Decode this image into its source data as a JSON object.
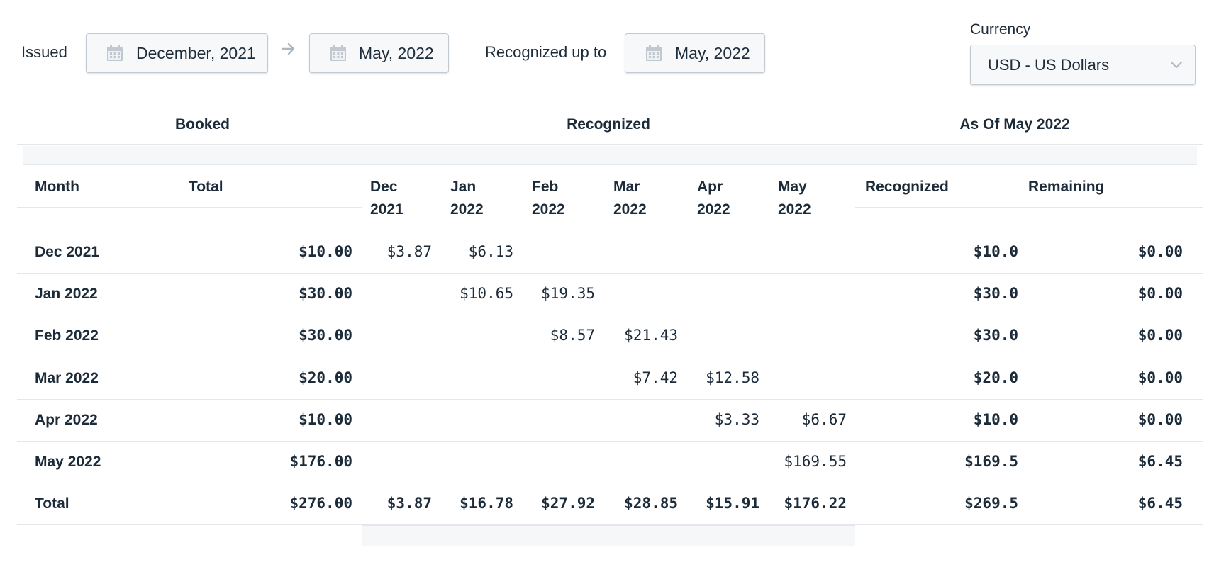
{
  "filters": {
    "issued_label": "Issued",
    "issued_from": "December, 2021",
    "issued_to": "May, 2022",
    "recognized_label": "Recognized up to",
    "recognized_up_to": "May, 2022",
    "currency_label": "Currency",
    "currency_value": "USD - US Dollars"
  },
  "groups": {
    "booked": "Booked",
    "recognized": "Recognized",
    "as_of": "As Of May 2022"
  },
  "columns": {
    "month": "Month",
    "total": "Total",
    "months": [
      {
        "l1": "Dec",
        "l2": "2021"
      },
      {
        "l1": "Jan",
        "l2": "2022"
      },
      {
        "l1": "Feb",
        "l2": "2022"
      },
      {
        "l1": "Mar",
        "l2": "2022"
      },
      {
        "l1": "Apr",
        "l2": "2022"
      },
      {
        "l1": "May",
        "l2": "2022"
      }
    ],
    "recognized": "Recognized",
    "remaining": "Remaining"
  },
  "rows": [
    {
      "month": "Dec 2021",
      "total": "$10.00",
      "m": [
        "$3.87",
        "$6.13",
        "",
        "",
        "",
        ""
      ],
      "recognized": "$10.0",
      "remaining": "$0.00"
    },
    {
      "month": "Jan 2022",
      "total": "$30.00",
      "m": [
        "",
        "$10.65",
        "$19.35",
        "",
        "",
        ""
      ],
      "recognized": "$30.0",
      "remaining": "$0.00"
    },
    {
      "month": "Feb 2022",
      "total": "$30.00",
      "m": [
        "",
        "",
        "$8.57",
        "$21.43",
        "",
        ""
      ],
      "recognized": "$30.0",
      "remaining": "$0.00"
    },
    {
      "month": "Mar 2022",
      "total": "$20.00",
      "m": [
        "",
        "",
        "",
        "$7.42",
        "$12.58",
        ""
      ],
      "recognized": "$20.0",
      "remaining": "$0.00"
    },
    {
      "month": "Apr 2022",
      "total": "$10.00",
      "m": [
        "",
        "",
        "",
        "",
        "$3.33",
        "$6.67"
      ],
      "recognized": "$10.0",
      "remaining": "$0.00"
    },
    {
      "month": "May 2022",
      "total": "$176.00",
      "m": [
        "",
        "",
        "",
        "",
        "",
        "$169.55"
      ],
      "recognized": "$169.5",
      "remaining": "$6.45"
    }
  ],
  "totals": {
    "label": "Total",
    "total": "$276.00",
    "m": [
      "$3.87",
      "$16.78",
      "$27.92",
      "$28.85",
      "$15.91",
      "$176.22"
    ],
    "recognized": "$269.5",
    "remaining": "$6.45"
  },
  "icons": {
    "calendar": "calendar-icon",
    "arrow": "arrow-right-icon",
    "chevron": "chevron-down-icon"
  },
  "colors": {
    "text": "#1c2b39",
    "border": "#c3c9d1",
    "button_bg": "#f7f8fa",
    "icon": "#b7bec7"
  }
}
